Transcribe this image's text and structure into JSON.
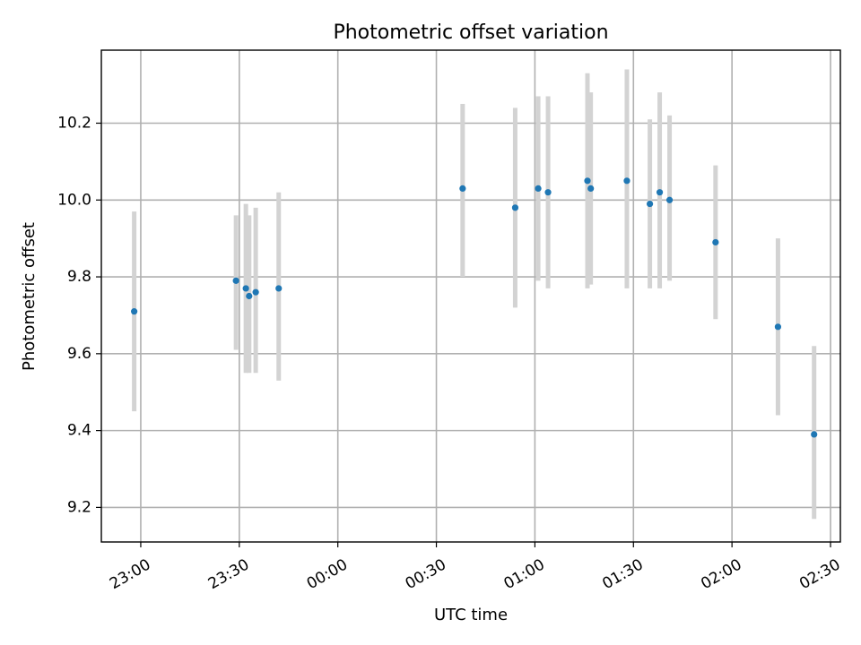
{
  "chart_data": {
    "type": "scatter",
    "title": "Photometric offset variation",
    "xlabel": "UTC time",
    "ylabel": "Photometric offset",
    "x_axis_kind": "time",
    "xlim": [
      "22:48",
      "02:33"
    ],
    "ylim": [
      9.11,
      10.39
    ],
    "xticks": [
      "23:00",
      "23:30",
      "00:00",
      "00:30",
      "01:00",
      "01:30",
      "02:00",
      "02:30"
    ],
    "yticks": [
      9.2,
      9.4,
      9.6,
      9.8,
      10.0,
      10.2
    ],
    "ytick_labels": [
      "9.2",
      "9.4",
      "9.6",
      "9.8",
      "10.0",
      "10.2"
    ],
    "grid": true,
    "marker_color": "#1f77b4",
    "errorbar_color": "#d3d3d3",
    "points": [
      {
        "x": "22:58",
        "y": 9.71,
        "ylow": 9.45,
        "yhigh": 9.97
      },
      {
        "x": "23:29",
        "y": 9.79,
        "ylow": 9.61,
        "yhigh": 9.96
      },
      {
        "x": "23:32",
        "y": 9.77,
        "ylow": 9.55,
        "yhigh": 9.99
      },
      {
        "x": "23:33",
        "y": 9.75,
        "ylow": 9.55,
        "yhigh": 9.96
      },
      {
        "x": "23:35",
        "y": 9.76,
        "ylow": 9.55,
        "yhigh": 9.98
      },
      {
        "x": "23:42",
        "y": 9.77,
        "ylow": 9.53,
        "yhigh": 10.02
      },
      {
        "x": "00:38",
        "y": 10.03,
        "ylow": 9.8,
        "yhigh": 10.25
      },
      {
        "x": "00:54",
        "y": 9.98,
        "ylow": 9.72,
        "yhigh": 10.24
      },
      {
        "x": "01:01",
        "y": 10.03,
        "ylow": 9.79,
        "yhigh": 10.27
      },
      {
        "x": "01:04",
        "y": 10.02,
        "ylow": 9.77,
        "yhigh": 10.27
      },
      {
        "x": "01:16",
        "y": 10.05,
        "ylow": 9.77,
        "yhigh": 10.33
      },
      {
        "x": "01:17",
        "y": 10.03,
        "ylow": 9.78,
        "yhigh": 10.28
      },
      {
        "x": "01:28",
        "y": 10.05,
        "ylow": 9.77,
        "yhigh": 10.34
      },
      {
        "x": "01:35",
        "y": 9.99,
        "ylow": 9.77,
        "yhigh": 10.21
      },
      {
        "x": "01:38",
        "y": 10.02,
        "ylow": 9.77,
        "yhigh": 10.28
      },
      {
        "x": "01:41",
        "y": 10.0,
        "ylow": 9.79,
        "yhigh": 10.22
      },
      {
        "x": "01:55",
        "y": 9.89,
        "ylow": 9.69,
        "yhigh": 10.09
      },
      {
        "x": "02:14",
        "y": 9.67,
        "ylow": 9.44,
        "yhigh": 9.9
      },
      {
        "x": "02:25",
        "y": 9.39,
        "ylow": 9.17,
        "yhigh": 9.62
      }
    ]
  }
}
